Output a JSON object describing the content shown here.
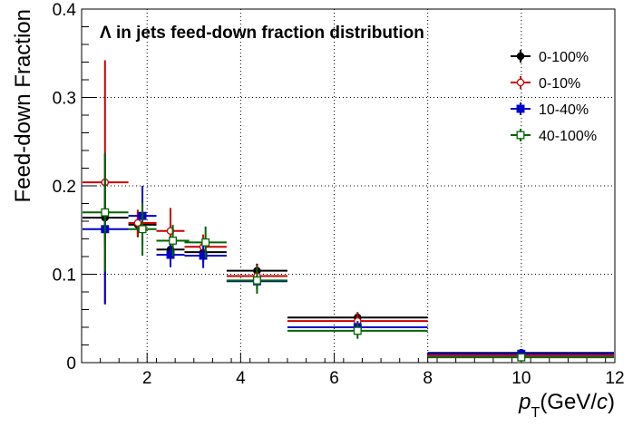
{
  "chart_data": {
    "type": "scatter",
    "title": "Λ in jets feed-down fraction distribution",
    "xlabel": {
      "symbol": "p",
      "sub": "T",
      "unit_open": "(GeV/",
      "unit_var": "c",
      "unit_close": ")"
    },
    "ylabel": "Feed-down Fraction",
    "xlim": [
      0.6,
      12
    ],
    "ylim": [
      0,
      0.4
    ],
    "x_ticks": [
      2,
      4,
      6,
      8,
      10,
      12
    ],
    "x_tick_labels": [
      "2",
      "4",
      "6",
      "8",
      "10",
      "12"
    ],
    "y_ticks": [
      0,
      0.1,
      0.2,
      0.3,
      0.4
    ],
    "y_tick_labels": [
      "0",
      "0.1",
      "0.2",
      "0.3",
      "0.4"
    ],
    "grid": true,
    "grid_style": "dotted",
    "legend_position": "top-right",
    "series": [
      {
        "name": "0-100%",
        "color": "#000000",
        "marker": "filled-circle",
        "points": [
          {
            "x": 1.1,
            "y": 0.164,
            "xlo": 0.6,
            "xhi": 1.6,
            "yerr": 0.03
          },
          {
            "x": 1.8,
            "y": 0.156,
            "xlo": 1.6,
            "xhi": 2.2,
            "yerr": 0.014
          },
          {
            "x": 2.5,
            "y": 0.128,
            "xlo": 2.2,
            "xhi": 2.8,
            "yerr": 0.012
          },
          {
            "x": 3.2,
            "y": 0.125,
            "xlo": 2.8,
            "xhi": 3.7,
            "yerr": 0.012
          },
          {
            "x": 4.35,
            "y": 0.104,
            "xlo": 3.7,
            "xhi": 5.0,
            "yerr": 0.008
          },
          {
            "x": 6.5,
            "y": 0.051,
            "xlo": 5.0,
            "xhi": 8.0,
            "yerr": 0.006
          },
          {
            "x": 10.0,
            "y": 0.011,
            "xlo": 8.0,
            "xhi": 12.0,
            "yerr": 0.004
          }
        ]
      },
      {
        "name": "0-10%",
        "color": "#cc0000",
        "marker": "open-circle",
        "points": [
          {
            "x": 1.1,
            "y": 0.204,
            "xlo": 0.6,
            "xhi": 1.6,
            "yerr": 0.138
          },
          {
            "x": 1.8,
            "y": 0.158,
            "xlo": 1.6,
            "xhi": 2.2,
            "yerr": 0.015
          },
          {
            "x": 2.5,
            "y": 0.149,
            "xlo": 2.2,
            "xhi": 2.8,
            "yerr": 0.026
          },
          {
            "x": 3.2,
            "y": 0.131,
            "xlo": 2.8,
            "xhi": 3.7,
            "yerr": 0.014
          },
          {
            "x": 4.35,
            "y": 0.098,
            "xlo": 3.7,
            "xhi": 5.0,
            "yerr": 0.012
          },
          {
            "x": 6.5,
            "y": 0.047,
            "xlo": 5.0,
            "xhi": 8.0,
            "yerr": 0.009
          },
          {
            "x": 10.0,
            "y": 0.008,
            "xlo": 8.0,
            "xhi": 12.0,
            "yerr": 0.004
          }
        ]
      },
      {
        "name": "10-40%",
        "color": "#0000cc",
        "marker": "filled-square",
        "points": [
          {
            "x": 1.1,
            "y": 0.151,
            "xlo": 0.6,
            "xhi": 1.6,
            "yerr": 0.085
          },
          {
            "x": 1.9,
            "y": 0.166,
            "xlo": 1.6,
            "xhi": 2.2,
            "yerr": 0.034
          },
          {
            "x": 2.5,
            "y": 0.122,
            "xlo": 2.2,
            "xhi": 2.8,
            "yerr": 0.014
          },
          {
            "x": 3.2,
            "y": 0.121,
            "xlo": 2.8,
            "xhi": 3.7,
            "yerr": 0.014
          },
          {
            "x": 4.35,
            "y": 0.092,
            "xlo": 3.7,
            "xhi": 5.0,
            "yerr": 0.009
          },
          {
            "x": 6.5,
            "y": 0.04,
            "xlo": 5.0,
            "xhi": 8.0,
            "yerr": 0.007
          },
          {
            "x": 10.0,
            "y": 0.01,
            "xlo": 8.0,
            "xhi": 12.0,
            "yerr": 0.004
          }
        ]
      },
      {
        "name": "40-100%",
        "color": "#006600",
        "marker": "open-square",
        "points": [
          {
            "x": 1.1,
            "y": 0.17,
            "xlo": 0.6,
            "xhi": 1.6,
            "yerr": 0.067
          },
          {
            "x": 1.9,
            "y": 0.151,
            "xlo": 1.6,
            "xhi": 2.2,
            "yerr": 0.03
          },
          {
            "x": 2.55,
            "y": 0.138,
            "xlo": 2.2,
            "xhi": 2.9,
            "yerr": 0.018
          },
          {
            "x": 3.25,
            "y": 0.136,
            "xlo": 2.8,
            "xhi": 3.7,
            "yerr": 0.018
          },
          {
            "x": 4.35,
            "y": 0.093,
            "xlo": 3.7,
            "xhi": 5.0,
            "yerr": 0.015
          },
          {
            "x": 6.5,
            "y": 0.036,
            "xlo": 5.0,
            "xhi": 8.0,
            "yerr": 0.009
          },
          {
            "x": 10.0,
            "y": 0.006,
            "xlo": 8.0,
            "xhi": 12.0,
            "yerr": 0.004
          }
        ]
      }
    ]
  }
}
